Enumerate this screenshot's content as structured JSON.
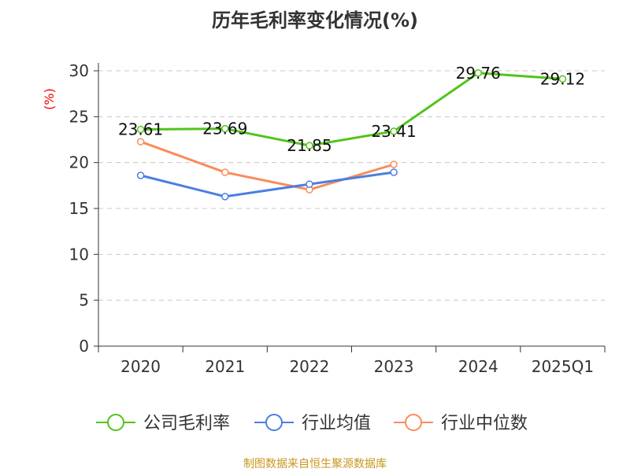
{
  "chart_data": {
    "type": "line",
    "title": "历年毛利率变化情况(%)",
    "ylabel": "(%)",
    "xlabel": "",
    "categories": [
      "2020",
      "2021",
      "2022",
      "2023",
      "2024",
      "2025Q1"
    ],
    "ylim": [
      0,
      30
    ],
    "yticks": [
      0,
      5,
      10,
      15,
      20,
      25,
      30
    ],
    "grid": true,
    "legend_position": "bottom",
    "series": [
      {
        "name": "公司毛利率",
        "color": "#52c41a",
        "values": [
          23.61,
          23.69,
          21.85,
          23.41,
          29.76,
          29.12
        ],
        "labels": [
          "23.61",
          "23.69",
          "21.85",
          "23.41",
          "29.76",
          "29.12"
        ]
      },
      {
        "name": "行业均值",
        "color": "#4a7fe0",
        "values": [
          18.6,
          16.3,
          17.65,
          18.94,
          null,
          null
        ]
      },
      {
        "name": "行业中位数",
        "color": "#fa8c5a",
        "values": [
          22.28,
          18.94,
          17.05,
          19.8,
          null,
          null
        ]
      }
    ]
  },
  "source": "制图数据来自恒生聚源数据库"
}
